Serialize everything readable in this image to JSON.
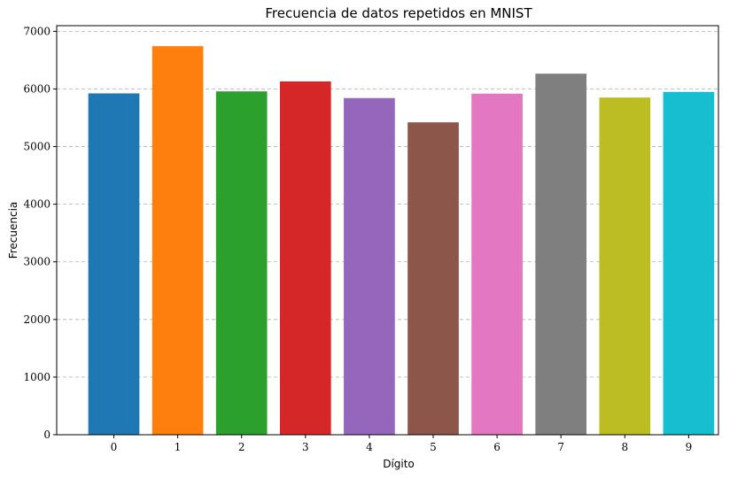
{
  "chart_data": {
    "type": "bar",
    "title": "Frecuencia de datos repetidos en MNIST",
    "xlabel": "Dígito",
    "ylabel": "Frecuencia",
    "categories": [
      "0",
      "1",
      "2",
      "3",
      "4",
      "5",
      "6",
      "7",
      "8",
      "9"
    ],
    "values": [
      5923,
      6742,
      5958,
      6131,
      5842,
      5421,
      5918,
      6265,
      5851,
      5949
    ],
    "colors": [
      "#1f77b4",
      "#ff7f0e",
      "#2ca02c",
      "#d62728",
      "#9467bd",
      "#8c564b",
      "#e377c2",
      "#7f7f7f",
      "#bcbd22",
      "#17becf"
    ],
    "ylim": [
      0,
      7098
    ],
    "yticks": [
      0,
      1000,
      2000,
      3000,
      4000,
      5000,
      6000,
      7000
    ],
    "grid": "y-dashed",
    "legend": "none"
  }
}
